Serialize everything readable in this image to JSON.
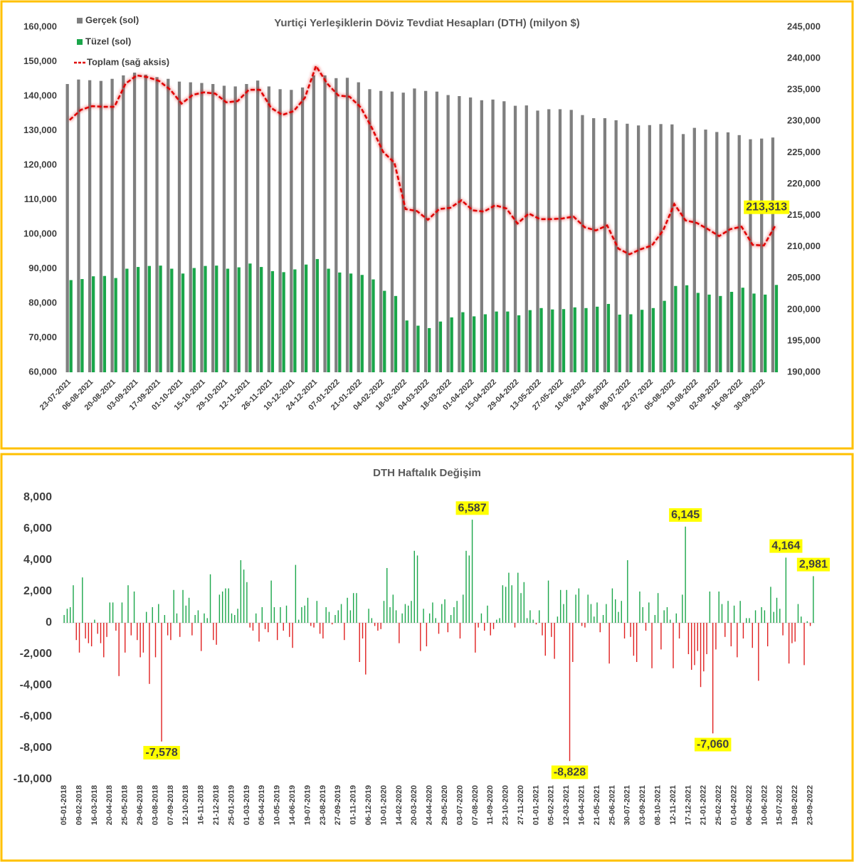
{
  "chart_data": [
    {
      "type": "bar",
      "title": "Yurtiçi Yerleşiklerin Döviz Tevdiat Hesapları (DTH) (milyon $)",
      "categories": [
        "23-07-2021",
        null,
        "06-08-2021",
        null,
        "20-08-2021",
        null,
        "03-09-2021",
        null,
        "17-09-2021",
        null,
        "01-10-2021",
        null,
        "15-10-2021",
        null,
        "29-10-2021",
        null,
        "12-11-2021",
        null,
        "26-11-2021",
        null,
        "10-12-2021",
        null,
        "24-12-2021",
        null,
        "07-01-2022",
        null,
        "21-01-2022",
        null,
        "04-02-2022",
        null,
        "18-02-2022",
        null,
        "04-03-2022",
        null,
        "18-03-2022",
        null,
        "01-04-2022",
        null,
        "15-04-2022",
        null,
        "29-04-2022",
        null,
        "13-05-2022",
        null,
        "27-05-2022",
        null,
        "10-06-2022",
        null,
        "24-06-2022",
        null,
        "08-07-2022",
        null,
        "22-07-2022",
        null,
        "05-08-2022",
        null,
        "19-08-2022",
        null,
        "02-09-2022",
        null,
        "16-09-2022",
        null,
        "30-09-2022",
        null
      ],
      "series": [
        {
          "name": "Gerçek (sol)",
          "color": "#7f7f7f",
          "values": [
            143500,
            144800,
            144600,
            144400,
            145000,
            146000,
            146800,
            146200,
            145500,
            145000,
            144200,
            144000,
            143800,
            143500,
            143000,
            142800,
            143500,
            144500,
            142800,
            142000,
            141800,
            142500,
            146000,
            146000,
            145200,
            145300,
            144000,
            142000,
            141500,
            141300,
            141000,
            142200,
            141500,
            141300,
            140300,
            140000,
            139600,
            138800,
            139000,
            138500,
            137200,
            137300,
            135800,
            136200,
            136200,
            136000,
            134500,
            133600,
            133600,
            133000,
            132000,
            131500,
            131600,
            131900,
            131800,
            129000,
            130800,
            130300,
            129600,
            129500,
            128700,
            127500,
            127700,
            128000
          ]
        },
        {
          "name": "Tüzel (sol)",
          "color": "#1aa64a",
          "values": [
            86700,
            87000,
            87800,
            87900,
            87300,
            90000,
            90500,
            90800,
            90900,
            90000,
            88600,
            90200,
            90800,
            90900,
            90000,
            90400,
            91500,
            90500,
            89300,
            89000,
            89800,
            91200,
            92800,
            90000,
            88900,
            88600,
            88200,
            86900,
            83600,
            82100,
            75000,
            73500,
            72800,
            74700,
            75900,
            77400,
            76200,
            76800,
            77600,
            77600,
            76500,
            78000,
            78600,
            78200,
            78300,
            78800,
            78600,
            79000,
            79800,
            76700,
            76800,
            78100,
            78600,
            80700,
            85000,
            85200,
            83000,
            82500,
            82100,
            83300,
            84500,
            82800,
            82500,
            85300
          ]
        },
        {
          "name": "Toplam (sağ aksis)",
          "color": "#e00000",
          "type": "line",
          "axis": "y2",
          "dashed": true,
          "values": [
            230200,
            231800,
            232400,
            232300,
            232300,
            236000,
            237300,
            237000,
            236400,
            235000,
            232800,
            234200,
            234600,
            234400,
            233000,
            233200,
            235000,
            235000,
            232100,
            231000,
            231600,
            233700,
            238800,
            236000,
            234100,
            233900,
            232200,
            228900,
            225100,
            223400,
            216000,
            215700,
            214300,
            216000,
            216200,
            217400,
            215800,
            215600,
            216600,
            216100,
            213700,
            215300,
            214400,
            214400,
            214500,
            214800,
            213100,
            212600,
            213400,
            209700,
            208800,
            209600,
            210200,
            212600,
            216800,
            214200,
            213800,
            212800,
            211700,
            212800,
            213200,
            210300,
            210200,
            213313
          ],
          "value_labels": {
            "63": "213,313"
          }
        }
      ],
      "ylim": [
        60000,
        160000
      ],
      "yticks": [
        {
          "value": 60000,
          "label": "60,000"
        },
        {
          "value": 70000,
          "label": "70,000"
        },
        {
          "value": 80000,
          "label": "80,000"
        },
        {
          "value": 90000,
          "label": "90,000"
        },
        {
          "value": 100000,
          "label": "100,000"
        },
        {
          "value": 110000,
          "label": "110,000"
        },
        {
          "value": 120000,
          "label": "120,000"
        },
        {
          "value": 130000,
          "label": "130,000"
        },
        {
          "value": 140000,
          "label": "140,000"
        },
        {
          "value": 150000,
          "label": "150,000"
        },
        {
          "value": 160000,
          "label": "160,000"
        }
      ],
      "y2lim": [
        190000,
        245000
      ],
      "y2ticks": [
        {
          "value": 190000,
          "label": "190,000"
        },
        {
          "value": 195000,
          "label": "195,000"
        },
        {
          "value": 200000,
          "label": "200,000"
        },
        {
          "value": 205000,
          "label": "205,000"
        },
        {
          "value": 210000,
          "label": "210,000"
        },
        {
          "value": 215000,
          "label": "215,000"
        },
        {
          "value": 220000,
          "label": "220,000"
        },
        {
          "value": 225000,
          "label": "225,000"
        },
        {
          "value": 230000,
          "label": "230,000"
        },
        {
          "value": 235000,
          "label": "235,000"
        },
        {
          "value": 240000,
          "label": "240,000"
        },
        {
          "value": 245000,
          "label": "245,000"
        }
      ],
      "legend": "top-left",
      "grid": false
    },
    {
      "type": "bar",
      "title": "DTH Haftalık Değişim",
      "categories": [
        "05-01-2018",
        null,
        null,
        null,
        null,
        "09-02-2018",
        null,
        null,
        null,
        null,
        "16-03-2018",
        null,
        null,
        null,
        null,
        "20-04-2018",
        null,
        null,
        null,
        null,
        "25-05-2018",
        null,
        null,
        null,
        null,
        "29-06-2018",
        null,
        null,
        null,
        null,
        "03-08-2018",
        null,
        null,
        null,
        null,
        "07-09-2018",
        null,
        null,
        null,
        null,
        "12-10-2018",
        null,
        null,
        null,
        null,
        "16-11-2018",
        null,
        null,
        null,
        null,
        "21-12-2018",
        null,
        null,
        null,
        null,
        "25-01-2019",
        null,
        null,
        null,
        null,
        "01-03-2019",
        null,
        null,
        null,
        null,
        "05-04-2019",
        null,
        null,
        null,
        null,
        "10-05-2019",
        null,
        null,
        null,
        null,
        "14-06-2019",
        null,
        null,
        null,
        null,
        "19-07-2019",
        null,
        null,
        null,
        null,
        "23-08-2019",
        null,
        null,
        null,
        null,
        "27-09-2019",
        null,
        null,
        null,
        null,
        "01-11-2019",
        null,
        null,
        null,
        null,
        "06-12-2019",
        null,
        null,
        null,
        null,
        "10-01-2020",
        null,
        null,
        null,
        null,
        "14-02-2020",
        null,
        null,
        null,
        null,
        "20-03-2020",
        null,
        null,
        null,
        null,
        "24-04-2020",
        null,
        null,
        null,
        null,
        "29-05-2020",
        null,
        null,
        null,
        null,
        "03-07-2020",
        null,
        null,
        null,
        null,
        "07-08-2020",
        null,
        null,
        null,
        null,
        "11-09-2020",
        null,
        null,
        null,
        null,
        "23-10-2020",
        null,
        null,
        null,
        null,
        "27-11-2020",
        null,
        null,
        null,
        null,
        "01-01-2021",
        null,
        null,
        null,
        null,
        "05-02-2021",
        null,
        null,
        null,
        null,
        "12-03-2021",
        null,
        null,
        null,
        null,
        "16-04-2021",
        null,
        null,
        null,
        null,
        "21-05-2021",
        null,
        null,
        null,
        null,
        "25-06-2021",
        null,
        null,
        null,
        null,
        "30-07-2021",
        null,
        null,
        null,
        null,
        "03-09-2021",
        null,
        null,
        null,
        null,
        "08-10-2021",
        null,
        null,
        null,
        null,
        "12-11-2021",
        null,
        null,
        null,
        null,
        "17-12-2021",
        null,
        null,
        null,
        null,
        "21-01-2022",
        null,
        null,
        null,
        null,
        "25-02-2022",
        null,
        null,
        null,
        null,
        "01-04-2022",
        null,
        null,
        null,
        null,
        "06-05-2022",
        null,
        null,
        null,
        null,
        "10-06-2022",
        null,
        null,
        null,
        null,
        "15-07-2022",
        null,
        null,
        null,
        null,
        "19-08-2022",
        null,
        null,
        null,
        null,
        "23-09-2022",
        null
      ],
      "values": [
        500,
        900,
        1000,
        2400,
        -1100,
        -1900,
        2900,
        -1000,
        -1300,
        -1500,
        200,
        -700,
        -1300,
        -2200,
        -900,
        1300,
        1300,
        -500,
        -3400,
        1300,
        -1900,
        2400,
        -800,
        2000,
        -1100,
        -2200,
        -1900,
        700,
        -3900,
        1000,
        -2200,
        1200,
        -7578,
        500,
        -800,
        -1100,
        2100,
        600,
        -900,
        2100,
        1100,
        1600,
        -800,
        500,
        800,
        -1800,
        600,
        300,
        3100,
        -1100,
        -1400,
        1800,
        2000,
        2200,
        2200,
        600,
        500,
        900,
        4000,
        3400,
        2600,
        -300,
        -500,
        600,
        -1200,
        1000,
        -400,
        -600,
        2700,
        1000,
        -1100,
        1000,
        -500,
        1100,
        -900,
        -1600,
        3700,
        200,
        1000,
        1100,
        1600,
        -200,
        -300,
        1400,
        -700,
        -1000,
        1000,
        700,
        -100,
        500,
        800,
        1200,
        -1100,
        1600,
        800,
        1900,
        1900,
        -2500,
        -1000,
        -3300,
        900,
        300,
        -200,
        -500,
        -400,
        1400,
        3500,
        1000,
        1800,
        800,
        -1300,
        600,
        1200,
        1100,
        1400,
        4600,
        4300,
        -1800,
        900,
        -1500,
        600,
        1300,
        300,
        -700,
        1200,
        1500,
        -600,
        500,
        1000,
        1400,
        -1000,
        1800,
        4600,
        4300,
        6587,
        -1900,
        -300,
        600,
        -500,
        1100,
        -800,
        -400,
        200,
        300,
        2400,
        2300,
        3200,
        2400,
        -300,
        3200,
        1900,
        2600,
        300,
        800,
        200,
        -100,
        800,
        -800,
        -2100,
        2700,
        -900,
        -2300,
        400,
        2100,
        1200,
        2100,
        -8828,
        -2500,
        1800,
        2200,
        -200,
        -300,
        1800,
        1200,
        400,
        1300,
        -600,
        500,
        1200,
        -2600,
        2200,
        1500,
        700,
        1400,
        -1000,
        4000,
        -900,
        -2100,
        -2500,
        2000,
        1000,
        -500,
        1300,
        -2900,
        500,
        1900,
        -1700,
        800,
        1000,
        200,
        -2900,
        600,
        -1000,
        1800,
        6145,
        -2000,
        -3000,
        -2700,
        -1800,
        -4100,
        -3100,
        -2000,
        2000,
        -7060,
        -1700,
        2000,
        1200,
        -900,
        1400,
        -1500,
        1100,
        -2200,
        1400,
        -1000,
        300,
        300,
        -1600,
        800,
        -3700,
        1000,
        800,
        -1500,
        2300,
        700,
        1600,
        900,
        -800,
        4164,
        -2600,
        -1300,
        -1200,
        1200,
        400,
        -2700,
        100,
        -200,
        2981
      ],
      "value_labels": {
        "32": "-7,578",
        "134": "6,587",
        "166": "-8,828",
        "204": "6,145",
        "213": "-7,060",
        "237": "4,164",
        "246": "2,981"
      },
      "positive_color": "#1aa64a",
      "negative_color": "#e02020",
      "ylim": [
        -10000,
        8000
      ],
      "yticks": [
        {
          "value": -10000,
          "label": "-10,000"
        },
        {
          "value": -8000,
          "label": "-8,000"
        },
        {
          "value": -6000,
          "label": "-6,000"
        },
        {
          "value": -4000,
          "label": "-4,000"
        },
        {
          "value": -2000,
          "label": "-2,000"
        },
        0,
        {
          "value": 2000,
          "label": "2,000"
        },
        {
          "value": 4000,
          "label": "4,000"
        },
        {
          "value": 6000,
          "label": "6,000"
        },
        {
          "value": 8000,
          "label": "8,000"
        }
      ],
      "grid": false
    }
  ]
}
